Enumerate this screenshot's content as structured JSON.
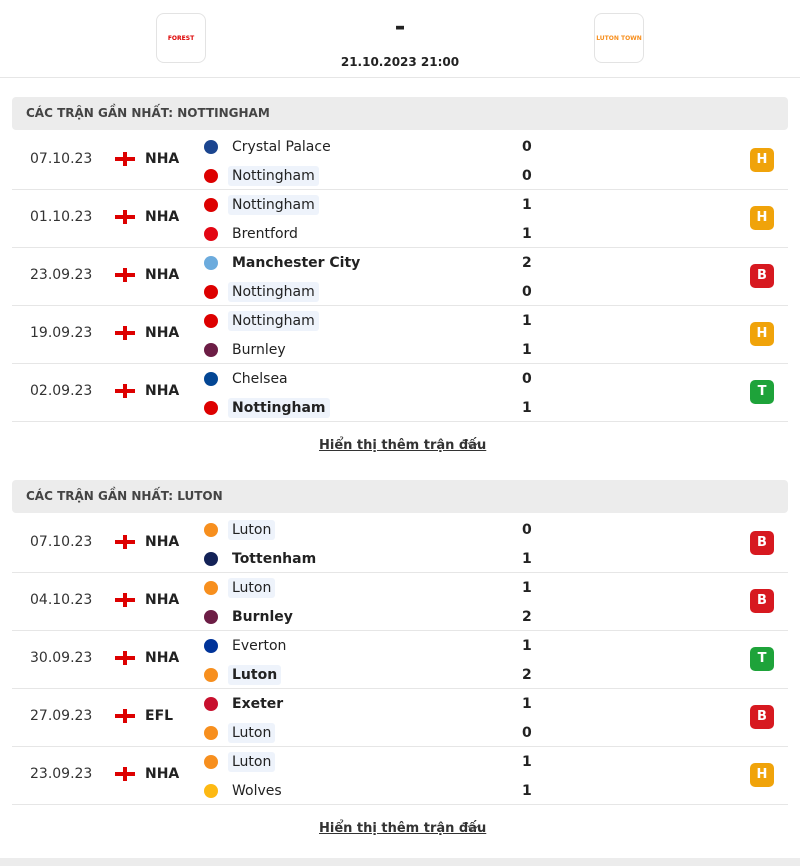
{
  "header": {
    "score": "-",
    "datetime": "21.10.2023 21:00",
    "home_logo": "FOREST",
    "away_logo": "LUTON TOWN"
  },
  "sections": [
    {
      "title": "CÁC TRẬN GẦN NHẤT: NOTTINGHAM",
      "more": "Hiển thị thêm trận đấu",
      "matches": [
        {
          "date": "07.10.23",
          "league": "NHA",
          "home": {
            "name": "Crystal Palace",
            "score": 0,
            "color": "#1b458f"
          },
          "away": {
            "name": "Nottingham",
            "score": 0,
            "color": "#dd0000"
          },
          "result": {
            "label": "H",
            "color": "#f0a30a"
          }
        },
        {
          "date": "01.10.23",
          "league": "NHA",
          "home": {
            "name": "Nottingham",
            "score": 1,
            "color": "#dd0000"
          },
          "away": {
            "name": "Brentford",
            "score": 1,
            "color": "#e30613"
          },
          "result": {
            "label": "H",
            "color": "#f0a30a"
          }
        },
        {
          "date": "23.09.23",
          "league": "NHA",
          "home": {
            "name": "Manchester City",
            "score": 2,
            "color": "#6cabdd"
          },
          "away": {
            "name": "Nottingham",
            "score": 0,
            "color": "#dd0000"
          },
          "result": {
            "label": "B",
            "color": "#d71920"
          }
        },
        {
          "date": "19.09.23",
          "league": "NHA",
          "home": {
            "name": "Nottingham",
            "score": 1,
            "color": "#dd0000"
          },
          "away": {
            "name": "Burnley",
            "score": 1,
            "color": "#6c1d45"
          },
          "result": {
            "label": "H",
            "color": "#f0a30a"
          }
        },
        {
          "date": "02.09.23",
          "league": "NHA",
          "home": {
            "name": "Chelsea",
            "score": 0,
            "color": "#034694"
          },
          "away": {
            "name": "Nottingham",
            "score": 1,
            "color": "#dd0000"
          },
          "result": {
            "label": "T",
            "color": "#1ea33a"
          }
        }
      ]
    },
    {
      "title": "CÁC TRẬN GẦN NHẤT: LUTON",
      "more": "Hiển thị thêm trận đấu",
      "matches": [
        {
          "date": "07.10.23",
          "league": "NHA",
          "home": {
            "name": "Luton",
            "score": 0,
            "color": "#f78f1e"
          },
          "away": {
            "name": "Tottenham",
            "score": 1,
            "color": "#132257"
          },
          "result": {
            "label": "B",
            "color": "#d71920"
          }
        },
        {
          "date": "04.10.23",
          "league": "NHA",
          "home": {
            "name": "Luton",
            "score": 1,
            "color": "#f78f1e"
          },
          "away": {
            "name": "Burnley",
            "score": 2,
            "color": "#6c1d45"
          },
          "result": {
            "label": "B",
            "color": "#d71920"
          }
        },
        {
          "date": "30.09.23",
          "league": "NHA",
          "home": {
            "name": "Everton",
            "score": 1,
            "color": "#003399"
          },
          "away": {
            "name": "Luton",
            "score": 2,
            "color": "#f78f1e"
          },
          "result": {
            "label": "T",
            "color": "#1ea33a"
          }
        },
        {
          "date": "27.09.23",
          "league": "EFL",
          "home": {
            "name": "Exeter",
            "score": 1,
            "color": "#c8102e"
          },
          "away": {
            "name": "Luton",
            "score": 0,
            "color": "#f78f1e"
          },
          "result": {
            "label": "B",
            "color": "#d71920"
          }
        },
        {
          "date": "23.09.23",
          "league": "NHA",
          "home": {
            "name": "Luton",
            "score": 1,
            "color": "#f78f1e"
          },
          "away": {
            "name": "Wolves",
            "score": 1,
            "color": "#fdb913"
          },
          "result": {
            "label": "H",
            "color": "#f0a30a"
          }
        }
      ]
    }
  ]
}
